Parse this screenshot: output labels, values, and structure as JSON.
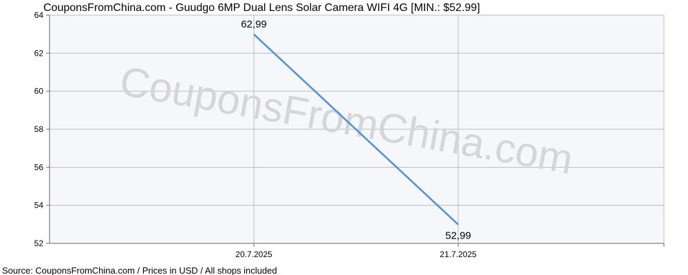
{
  "title": "CouponsFromChina.com - Guudgo 6MP Dual Lens Solar Camera WIFI 4G [MIN.: $52.99]",
  "footer": "Source: CouponsFromChina.com / Prices in USD / All shops included",
  "watermark": "CouponsFromChina.com",
  "colors": {
    "line": "#4a90e2",
    "grid": "#bbbbbb",
    "plot_bg": "#f6f7fb",
    "axis": "#666666",
    "watermark": "#d6d6d6"
  },
  "chart_data": {
    "type": "line",
    "x": [
      "20.7.2025",
      "21.7.2025"
    ],
    "series": [
      {
        "values": [
          62.99,
          52.99
        ],
        "labels": [
          "62,99",
          "52,99"
        ]
      }
    ],
    "ylim": [
      52,
      64
    ],
    "yticks": [
      52,
      54,
      56,
      58,
      60,
      62,
      64
    ],
    "grid": true
  }
}
